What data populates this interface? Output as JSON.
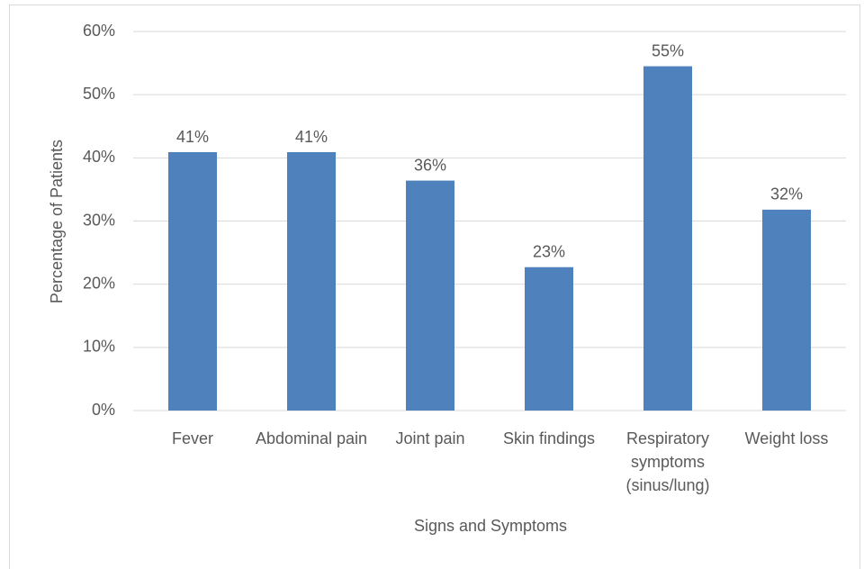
{
  "chart_data": {
    "type": "bar",
    "x_label": "Signs and Symptoms",
    "y_label": "Percentage of Patients",
    "categories": [
      "Fever",
      "Abdominal pain",
      "Joint pain",
      "Skin findings",
      "Respiratory symptoms (sinus/lung)",
      "Weight loss"
    ],
    "values": [
      40.9,
      40.9,
      36.4,
      22.7,
      54.5,
      31.8
    ],
    "value_labels": [
      "41%",
      "41%",
      "36%",
      "23%",
      "55%",
      "32%"
    ],
    "color": "#4f81bd",
    "ylim": [
      0,
      60
    ],
    "yticks": [
      {
        "value": 0,
        "label": "0%"
      },
      {
        "value": 10,
        "label": "10%"
      },
      {
        "value": 20,
        "label": "20%"
      },
      {
        "value": 30,
        "label": "30%"
      },
      {
        "value": 40,
        "label": "40%"
      },
      {
        "value": 50,
        "label": "50%"
      },
      {
        "value": 60,
        "label": "60%"
      }
    ],
    "grid": true
  }
}
